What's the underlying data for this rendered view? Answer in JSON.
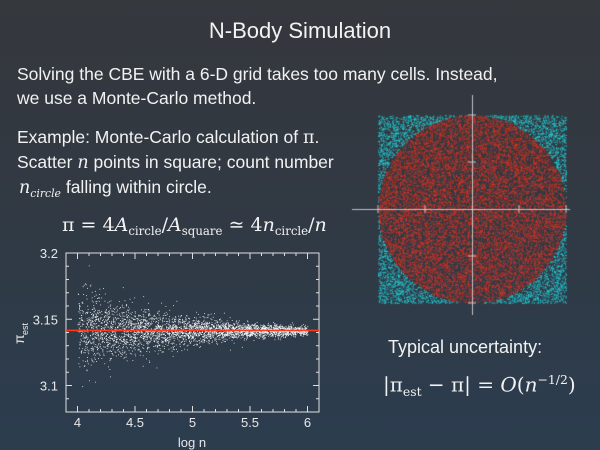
{
  "slide": {
    "title": "N-Body Simulation",
    "line1": "Solving the CBE with a 6-D grid takes too many cells.  Instead,",
    "line2": "we use a Monte-Carlo method.",
    "example": "Example: Monte-Carlo calculation of ",
    "example_pi": "π",
    "example_end": ".",
    "scatter_a": "Scatter ",
    "scatter_n": "n",
    "scatter_b": " points in square; count number",
    "ncircle_n": "n",
    "ncircle_sub": "circle",
    "falling": " falling within circle.",
    "formula1": {
      "p1": "π = 4",
      "A1": "A",
      "s1": "circle",
      "slash1": "/",
      "A2": "A",
      "s2": "square",
      "p2": " ≃ 4",
      "n1": "n",
      "s3": "circle",
      "p3": "/",
      "n2": "n"
    },
    "uncertainty_label": "Typical uncertainty:",
    "formula2": {
      "p1": "|π",
      "s1": "est",
      "p2": " − π| = ",
      "O": "O",
      "p3": "(",
      "n": "n",
      "sup": "−1/2",
      "p4": ")"
    }
  },
  "illustration": {
    "description_colors": {
      "inside": "#e8321e",
      "outside": "#22d4dc",
      "axes": "#d8d8d8"
    }
  },
  "chart_data": {
    "type": "scatter",
    "xlabel": "log n",
    "ylabel": "π",
    "ylabel_sub": "est",
    "xlim": [
      3.9,
      6.1
    ],
    "ylim": [
      3.08,
      3.2
    ],
    "xticks": [
      "4",
      "4.5",
      "5",
      "5.5",
      "6"
    ],
    "xtick_values": [
      4,
      4.5,
      5,
      5.5,
      6
    ],
    "yticks": [
      "3.1",
      "3.15",
      "3.2"
    ],
    "ytick_values": [
      3.1,
      3.15,
      3.2
    ],
    "series": {
      "x_range": [
        4,
        6
      ],
      "center": 3.14159,
      "spread_at_x4": 0.04,
      "spread_at_x6": 0.004,
      "color": "#ffffff"
    },
    "reference_line": {
      "y": 3.14159,
      "color": "#ff3a1a"
    },
    "grid": false
  }
}
